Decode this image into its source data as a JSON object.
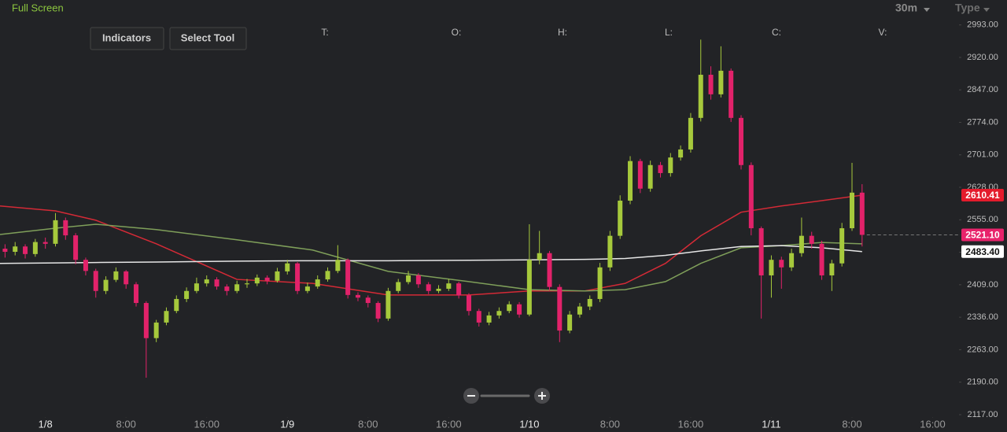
{
  "header": {
    "full_screen": "Full Screen",
    "interval": "30m",
    "type": "Type",
    "buttons": [
      "Indicators",
      "Select Tool"
    ],
    "ohlc_labels": [
      "T:",
      "O:",
      "H:",
      "L:",
      "C:",
      "V:"
    ]
  },
  "chart_data": {
    "type": "candlestick",
    "x": [
      -4,
      -3,
      -2,
      -1,
      0,
      1,
      2,
      3,
      4,
      5,
      6,
      7,
      8,
      9,
      10,
      11,
      12,
      13,
      14,
      15,
      16,
      17,
      18,
      19,
      20,
      21,
      22,
      23,
      24,
      25,
      26,
      27,
      28,
      29,
      30,
      31,
      32,
      33,
      34,
      35,
      36,
      37,
      38,
      39,
      40,
      41,
      42,
      43,
      44,
      45,
      46,
      47,
      48,
      49,
      50,
      51,
      52,
      53,
      54,
      55,
      56,
      57,
      58,
      59,
      60,
      61,
      62,
      63,
      64,
      65,
      66,
      67,
      68,
      69,
      70,
      71,
      72,
      73,
      74,
      75,
      76,
      77,
      78,
      79,
      80,
      81
    ],
    "open": [
      2490,
      2483,
      2495,
      2478,
      2505,
      2501,
      2554,
      2520,
      2465,
      2440,
      2395,
      2420,
      2439,
      2410,
      2368,
      2289,
      2324,
      2350,
      2377,
      2395,
      2412,
      2421,
      2405,
      2395,
      2410,
      2412,
      2425,
      2418,
      2439,
      2457,
      2395,
      2405,
      2421,
      2440,
      2465,
      2386,
      2380,
      2368,
      2333,
      2395,
      2415,
      2430,
      2410,
      2395,
      2400,
      2412,
      2385,
      2350,
      2324,
      2340,
      2350,
      2365,
      2342,
      2465,
      2480,
      2404,
      2306,
      2342,
      2360,
      2377,
      2448,
      2519,
      2598,
      2687,
      2625,
      2678,
      2660,
      2695,
      2713,
      2784,
      2881,
      2837,
      2890,
      2784,
      2678,
      2536,
      2430,
      2465,
      2448,
      2480,
      2519,
      2501,
      2430,
      2457,
      2536,
      2616
    ],
    "high": [
      2500,
      2505,
      2500,
      2512,
      2515,
      2570,
      2560,
      2525,
      2470,
      2445,
      2428,
      2448,
      2442,
      2415,
      2372,
      2330,
      2358,
      2385,
      2403,
      2425,
      2430,
      2426,
      2410,
      2418,
      2422,
      2432,
      2430,
      2447,
      2465,
      2460,
      2414,
      2430,
      2448,
      2498,
      2468,
      2392,
      2385,
      2372,
      2402,
      2422,
      2440,
      2435,
      2415,
      2408,
      2422,
      2416,
      2390,
      2355,
      2348,
      2358,
      2372,
      2370,
      2545,
      2530,
      2485,
      2410,
      2350,
      2368,
      2385,
      2458,
      2530,
      2610,
      2698,
      2692,
      2688,
      2685,
      2705,
      2722,
      2795,
      2960,
      2900,
      2945,
      2895,
      2790,
      2684,
      2540,
      2475,
      2472,
      2490,
      2560,
      2528,
      2508,
      2465,
      2548,
      2683,
      2635
    ],
    "low": [
      2470,
      2475,
      2468,
      2472,
      2490,
      2495,
      2510,
      2455,
      2430,
      2380,
      2388,
      2415,
      2400,
      2360,
      2200,
      2280,
      2318,
      2345,
      2370,
      2390,
      2405,
      2398,
      2385,
      2390,
      2402,
      2406,
      2410,
      2414,
      2432,
      2388,
      2390,
      2400,
      2416,
      2435,
      2378,
      2372,
      2358,
      2325,
      2328,
      2390,
      2410,
      2402,
      2388,
      2390,
      2395,
      2378,
      2340,
      2315,
      2318,
      2333,
      2345,
      2335,
      2338,
      2455,
      2396,
      2280,
      2300,
      2335,
      2352,
      2370,
      2440,
      2512,
      2590,
      2615,
      2618,
      2650,
      2652,
      2688,
      2706,
      2776,
      2825,
      2830,
      2775,
      2668,
      2520,
      2333,
      2380,
      2400,
      2440,
      2472,
      2490,
      2420,
      2395,
      2450,
      2530,
      2495
    ],
    "close": [
      2483,
      2495,
      2478,
      2505,
      2501,
      2554,
      2520,
      2465,
      2440,
      2395,
      2420,
      2439,
      2410,
      2368,
      2289,
      2324,
      2350,
      2377,
      2395,
      2412,
      2421,
      2405,
      2395,
      2410,
      2412,
      2425,
      2418,
      2439,
      2457,
      2395,
      2405,
      2421,
      2440,
      2465,
      2386,
      2380,
      2368,
      2333,
      2395,
      2415,
      2430,
      2410,
      2395,
      2400,
      2412,
      2385,
      2350,
      2324,
      2340,
      2350,
      2365,
      2342,
      2465,
      2480,
      2404,
      2306,
      2342,
      2360,
      2377,
      2448,
      2519,
      2598,
      2687,
      2625,
      2678,
      2660,
      2695,
      2713,
      2784,
      2881,
      2837,
      2890,
      2784,
      2678,
      2536,
      2430,
      2465,
      2448,
      2480,
      2519,
      2501,
      2430,
      2457,
      2536,
      2616,
      2521.1
    ],
    "up_color": "#a6c93c",
    "down_color": "#e2226a",
    "lines": [
      {
        "color": "#d42a36",
        "x": [
          -4.5,
          1,
          5,
          11,
          19,
          26.5,
          34,
          42,
          48,
          53.5,
          57.5,
          61.5,
          65,
          69,
          73,
          77,
          81
        ],
        "values": [
          2586,
          2575,
          2554,
          2501,
          2421,
          2412,
          2386,
          2386,
          2395,
          2395,
          2412,
          2457,
          2519,
          2572,
          2586,
          2598,
          2610.41
        ]
      },
      {
        "color": "#7f9f5a",
        "x": [
          -4.5,
          1,
          5,
          11,
          19,
          26.5,
          34,
          42,
          48,
          53.5,
          57.5,
          61.5,
          65,
          69,
          73,
          77,
          81
        ],
        "values": [
          2522,
          2536,
          2545,
          2533,
          2510,
          2487,
          2439,
          2416,
          2398,
          2395,
          2398,
          2416,
          2457,
          2492,
          2497,
          2504,
          2501
        ]
      },
      {
        "color": "#e6e6e6",
        "x": [
          -4.5,
          1,
          5,
          11,
          19,
          26.5,
          34,
          42,
          48,
          53.5,
          57.5,
          61.5,
          65,
          69,
          73,
          77,
          81
        ],
        "values": [
          2457,
          2458,
          2459,
          2460,
          2462,
          2463,
          2463,
          2464,
          2465,
          2466,
          2468,
          2475,
          2485,
          2495,
          2497,
          2492,
          2483.4
        ]
      }
    ],
    "markers": [
      {
        "value": 2610.41,
        "label": "2610.41",
        "color": "#e41b2c"
      },
      {
        "value": 2521.1,
        "label": "2521.10",
        "color": "#e8236b"
      },
      {
        "value": 2483.4,
        "label": "2483.40",
        "color": "#ffffff"
      }
    ],
    "xlim": [
      -4.5,
      90.3
    ],
    "xticks": [
      {
        "value": 0,
        "label": "1/8"
      },
      {
        "value": 8,
        "label": "8:00"
      },
      {
        "value": 16,
        "label": "16:00"
      },
      {
        "value": 24,
        "label": "1/9"
      },
      {
        "value": 32,
        "label": "8:00"
      },
      {
        "value": 40,
        "label": "16:00"
      },
      {
        "value": 48,
        "label": "1/10"
      },
      {
        "value": 56,
        "label": "8:00"
      },
      {
        "value": 64,
        "label": "16:00"
      },
      {
        "value": 72,
        "label": "1/11"
      },
      {
        "value": 80,
        "label": "8:00"
      },
      {
        "value": 88,
        "label": "16:00"
      }
    ],
    "ylim": [
      2078,
      3049
    ],
    "yticks": [
      {
        "value": 2117,
        "label": "2117.00"
      },
      {
        "value": 2190,
        "label": "2190.00"
      },
      {
        "value": 2263,
        "label": "2263.00"
      },
      {
        "value": 2336,
        "label": "2336.00"
      },
      {
        "value": 2409,
        "label": "2409.00"
      },
      {
        "value": 2482,
        "label": "2482.00"
      },
      {
        "value": 2555,
        "label": "2555.00"
      },
      {
        "value": 2628,
        "label": "2628.00"
      },
      {
        "value": 2701,
        "label": "2701.00"
      },
      {
        "value": 2774,
        "label": "2774.00"
      },
      {
        "value": 2847,
        "label": "2847.00"
      },
      {
        "value": 2920,
        "label": "2920.00"
      },
      {
        "value": 2993,
        "label": "2993.00"
      }
    ]
  }
}
